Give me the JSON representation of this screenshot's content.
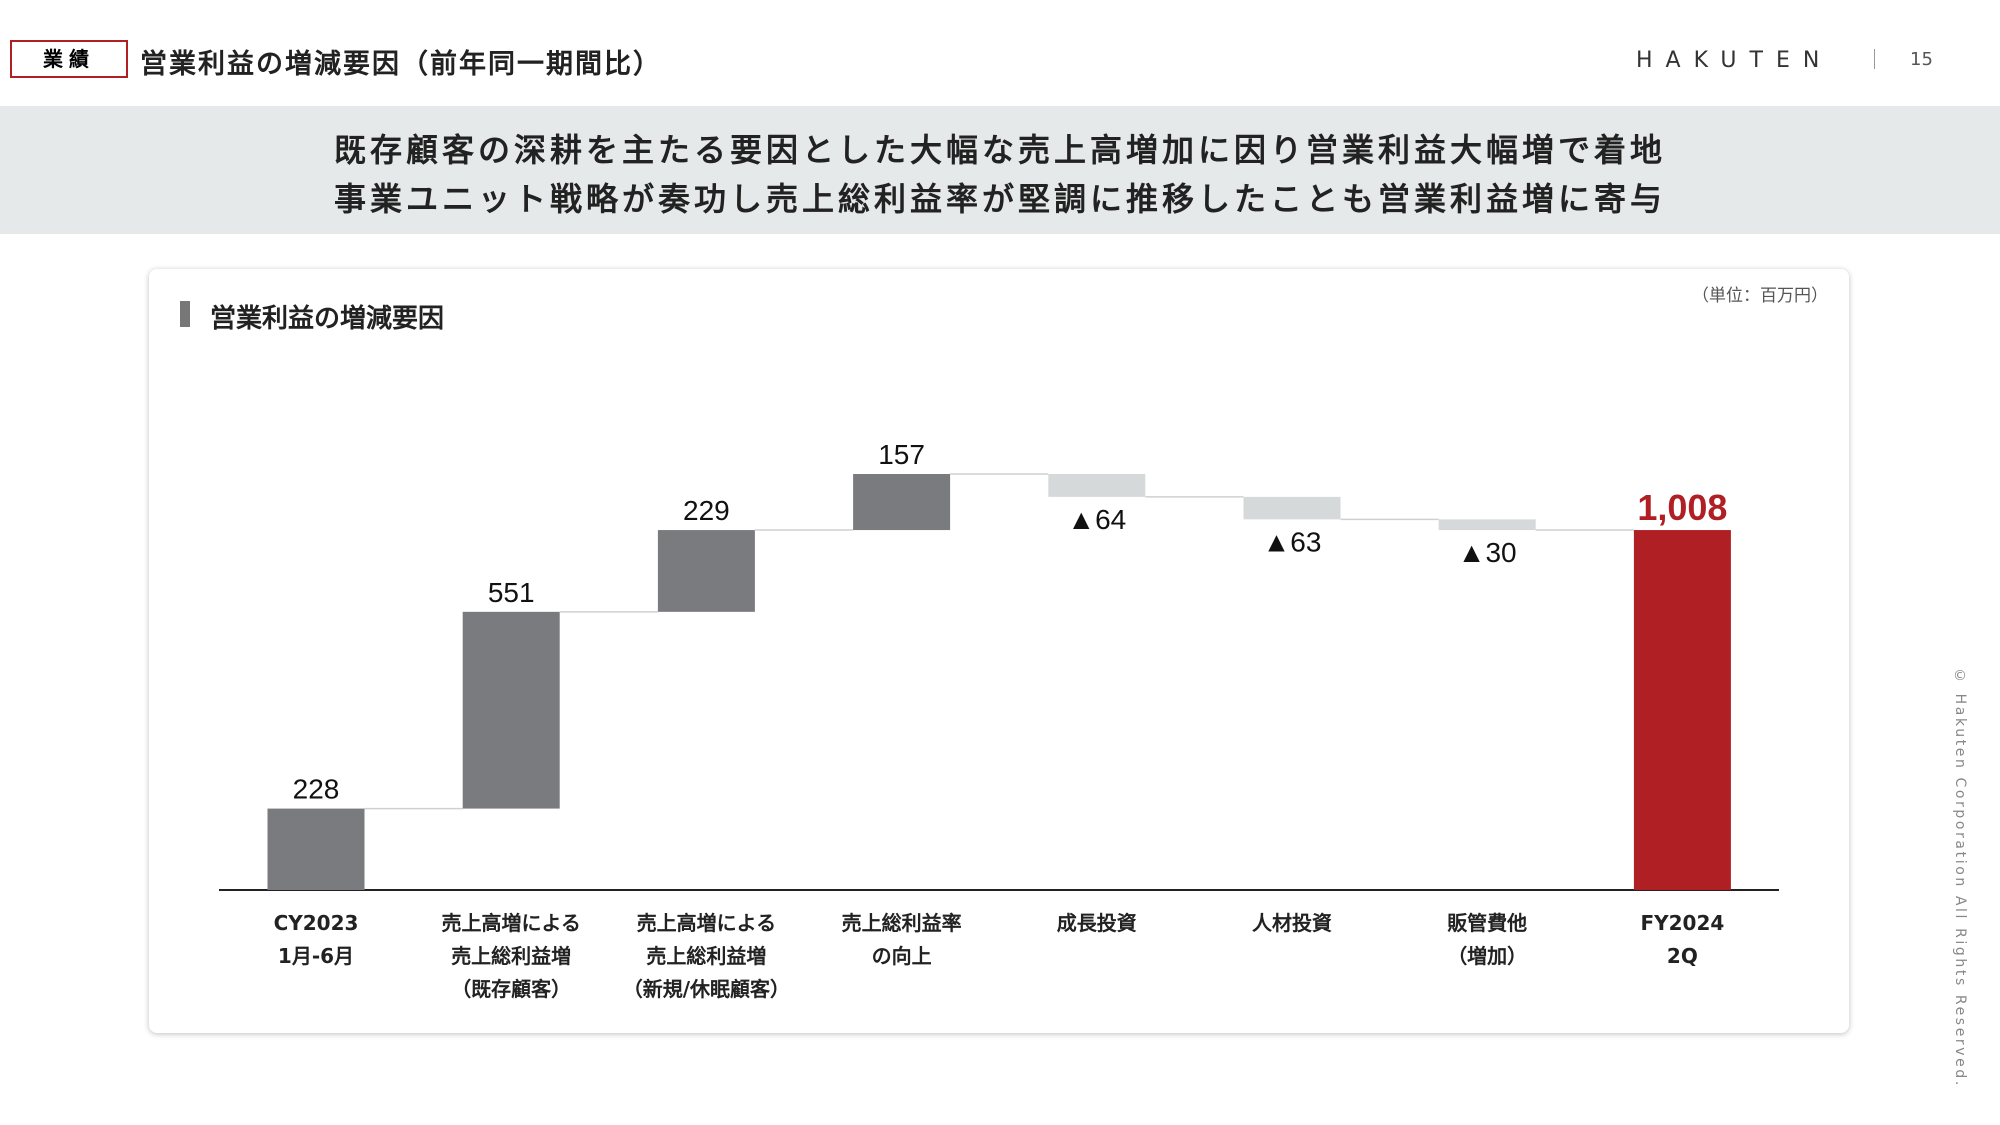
{
  "header": {
    "tag": "業績",
    "title": "営業利益の増減要因（前年同一期間比）",
    "logo": "HAKUTEN",
    "page_number": "15"
  },
  "banner": {
    "lines": [
      "既存顧客の深耕を主たる要因とした大幅な売上高増加に因り営業利益大幅増で着地",
      "事業ユニット戦略が奏功し売上総利益率が堅調に推移したことも営業利益増に寄与"
    ]
  },
  "footer": {
    "copyright": "© Hakuten Corporation All Rights Reserved."
  },
  "chart_data": {
    "type": "waterfall",
    "title": "営業利益の増減要因",
    "unit": "（単位：百万円）",
    "categories": [
      "CY2023\n1月-6月",
      "売上高増による\n売上総利益増\n（既存顧客）",
      "売上高増による\n売上総利益増\n（新規/休眠顧客）",
      "売上総利益率\nの向上",
      "成長投資",
      "人材投資",
      "販管費他\n（増加）",
      "FY2024\n2Q"
    ],
    "values": [
      228,
      551,
      229,
      157,
      -64,
      -63,
      -30,
      1008
    ],
    "value_labels": [
      "228",
      "551",
      "229",
      "157",
      "▲64",
      "▲63",
      "▲30",
      "1,008"
    ],
    "measure": [
      "absolute",
      "relative",
      "relative",
      "relative",
      "relative",
      "relative",
      "relative",
      "total"
    ],
    "colors": {
      "increase": "#797b7f",
      "decrease": "#d5d9da",
      "total": "#b01f24"
    }
  }
}
